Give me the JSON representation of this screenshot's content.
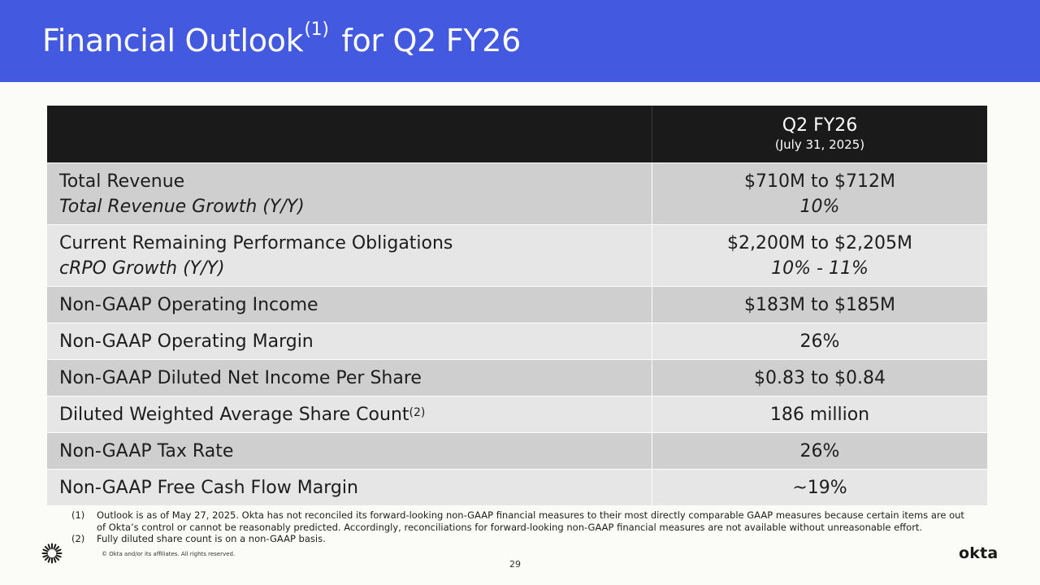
{
  "header": {
    "title_main": "Financial Outlook",
    "title_sup": "(1)",
    "title_rest": "for Q2 FY26"
  },
  "table": {
    "period": "Q2 FY26",
    "period_date": "(July 31, 2025)",
    "rows": [
      {
        "label": "Total Revenue",
        "sub_label": "Total Revenue Growth (Y/Y)",
        "value": "$710M to $712M",
        "sub_value": "10%"
      },
      {
        "label": "Current Remaining Performance Obligations",
        "sub_label": "cRPO Growth (Y/Y)",
        "value": "$2,200M to $2,205M",
        "sub_value": "10% - 11%"
      },
      {
        "label": "Non-GAAP Operating Income",
        "value": "$183M to $185M"
      },
      {
        "label": "Non-GAAP Operating Margin",
        "value": "26%"
      },
      {
        "label": "Non-GAAP Diluted Net Income Per Share",
        "value": "$0.83 to $0.84"
      },
      {
        "label": "Diluted Weighted Average Share Count",
        "label_sup": "(2)",
        "value": "186 million"
      },
      {
        "label": "Non-GAAP Tax Rate",
        "value": "26%"
      },
      {
        "label": "Non-GAAP Free Cash Flow Margin",
        "value": "~19%"
      }
    ]
  },
  "footnotes": [
    {
      "num": "(1)",
      "text": "Outlook is as of May 27, 2025. Okta has not reconciled its forward-looking non-GAAP financial measures to their most directly comparable GAAP measures because certain items are out of Okta’s control or cannot be reasonably predicted. Accordingly, reconciliations for forward-looking non-GAAP financial measures are not available without unreasonable effort."
    },
    {
      "num": "(2)",
      "text": "Fully diluted share count is on a non-GAAP basis."
    }
  ],
  "footer": {
    "copyright": "© Okta and/or its affiliates. All rights reserved.",
    "page_number": "29",
    "brand": "okta",
    "logo_icon": "okta-sunburst-icon"
  },
  "colors": {
    "header_bg": "#4359e0",
    "table_header_bg": "#1a1a1a",
    "row_dark": "#cfcfcf",
    "row_light": "#e6e6e6"
  }
}
